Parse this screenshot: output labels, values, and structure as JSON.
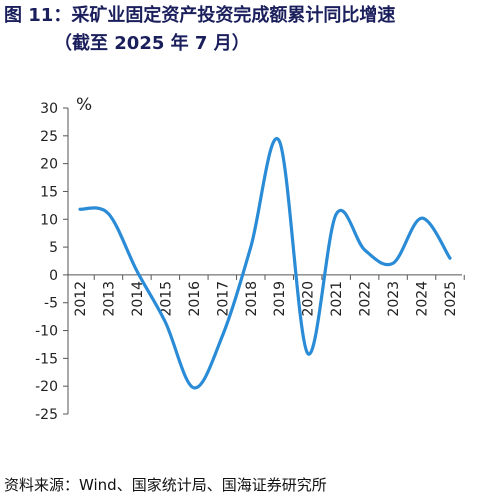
{
  "title_line1": "图 11：采矿业固定资产投资完成额累计同比增速",
  "title_line2": "（截至 2025 年 7 月）",
  "source": "资料来源：Wind、国家统计局、国海证券研究所",
  "colors": {
    "title": "#1a1f5c",
    "line": "#2a8bd6",
    "axis": "#555555",
    "text": "#222222"
  },
  "chart_data": {
    "type": "line",
    "title": "采矿业固定资产投资完成额累计同比增速",
    "ylabel": "%",
    "xlabel": "",
    "ylim": [
      -30,
      30
    ],
    "y_ticks": [
      30,
      25,
      20,
      15,
      10,
      5,
      0,
      -5,
      -10,
      -15,
      -20,
      -25
    ],
    "categories": [
      "2012",
      "2013",
      "2014",
      "2015",
      "2016",
      "2017",
      "2018",
      "2019",
      "2020",
      "2021",
      "2022",
      "2023",
      "2024",
      "2025"
    ],
    "series": [
      {
        "values": [
          11.8,
          11.0,
          0.7,
          -8.5,
          -20.3,
          -11.0,
          5.0,
          24.1,
          -14.1,
          10.9,
          4.5,
          2.1,
          10.2,
          3.0
        ]
      }
    ],
    "grid": false,
    "legend": "none"
  }
}
